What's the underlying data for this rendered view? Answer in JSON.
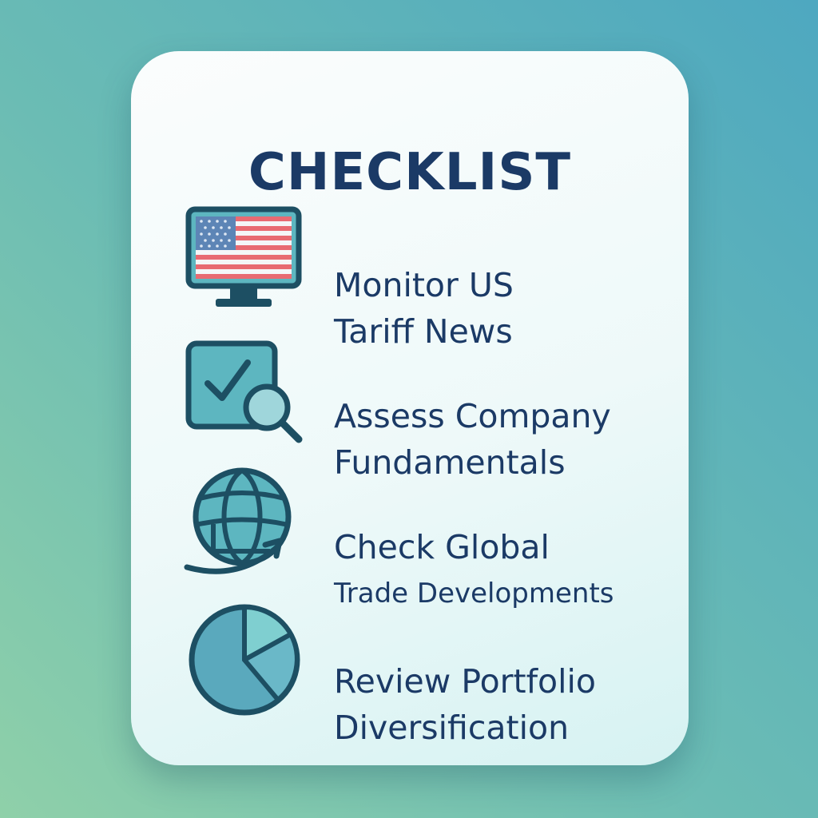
{
  "card": {
    "title": "CHECKLIST",
    "items": [
      {
        "line1": "Monitor US",
        "line2": "Tariff News",
        "icon": "flag-monitor-icon"
      },
      {
        "line1": "Assess Company",
        "line2": "Fundamentals",
        "icon": "checkbox-magnifier-icon"
      },
      {
        "line1": "Check Global",
        "line2": "Trade Developments",
        "icon": "globe-arrow-icon"
      },
      {
        "line1": "Review Portfolio",
        "line2": "Diversification",
        "icon": "pie-chart-icon"
      }
    ]
  },
  "colors": {
    "text": "#1b3a66",
    "icon_stroke": "#1d4f63",
    "icon_fill": "#5db6c0",
    "flag_red": "#e86a72"
  }
}
